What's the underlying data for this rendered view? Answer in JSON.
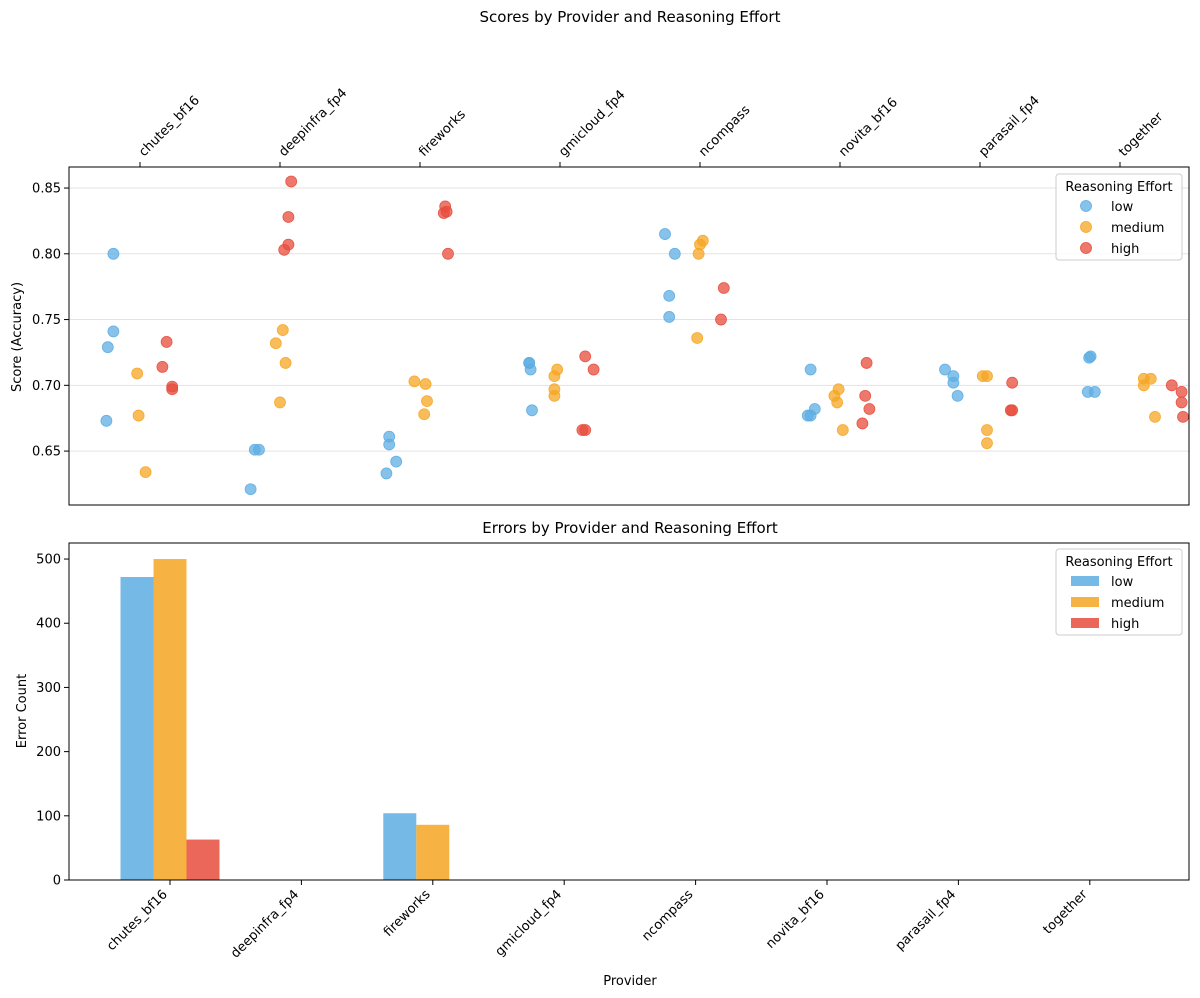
{
  "chart_data": [
    {
      "type": "scatter",
      "title": "Scores by Provider and Reasoning Effort",
      "xlabel": "",
      "ylabel": "Score (Accuracy)",
      "ylim": [
        0.609,
        0.866
      ],
      "yticks": [
        0.65,
        0.7,
        0.75,
        0.8,
        0.85
      ],
      "ytick_labels": [
        "0.65",
        "0.70",
        "0.75",
        "0.80",
        "0.85"
      ],
      "grid": "horizontal",
      "x_axis_position": "top",
      "categories": [
        "chutes_bf16",
        "deepinfra_fp4",
        "fireworks",
        "gmicloud_fp4",
        "ncompass",
        "novita_bf16",
        "parasail_fp4",
        "together"
      ],
      "legend": {
        "title": "Reasoning Effort",
        "placement": "top-right"
      },
      "series": [
        {
          "name": "low",
          "color": "#5DADE2",
          "points": [
            {
              "category": 0,
              "jitter": -0.24,
              "y": 0.673
            },
            {
              "category": 0,
              "jitter": -0.23,
              "y": 0.729
            },
            {
              "category": 0,
              "jitter": -0.19,
              "y": 0.741
            },
            {
              "category": 0,
              "jitter": -0.19,
              "y": 0.8
            },
            {
              "category": 1,
              "jitter": -0.21,
              "y": 0.621
            },
            {
              "category": 1,
              "jitter": -0.18,
              "y": 0.651
            },
            {
              "category": 1,
              "jitter": -0.15,
              "y": 0.651
            },
            {
              "category": 2,
              "jitter": -0.24,
              "y": 0.633
            },
            {
              "category": 2,
              "jitter": -0.22,
              "y": 0.655
            },
            {
              "category": 2,
              "jitter": -0.22,
              "y": 0.661
            },
            {
              "category": 2,
              "jitter": -0.17,
              "y": 0.642
            },
            {
              "category": 3,
              "jitter": -0.22,
              "y": 0.717
            },
            {
              "category": 3,
              "jitter": -0.21,
              "y": 0.712
            },
            {
              "category": 3,
              "jitter": -0.2,
              "y": 0.681
            },
            {
              "category": 3,
              "jitter": -0.22,
              "y": 0.717
            },
            {
              "category": 4,
              "jitter": -0.25,
              "y": 0.815
            },
            {
              "category": 4,
              "jitter": -0.22,
              "y": 0.768
            },
            {
              "category": 4,
              "jitter": -0.22,
              "y": 0.752
            },
            {
              "category": 4,
              "jitter": -0.18,
              "y": 0.8
            },
            {
              "category": 5,
              "jitter": -0.23,
              "y": 0.677
            },
            {
              "category": 5,
              "jitter": -0.21,
              "y": 0.677
            },
            {
              "category": 5,
              "jitter": -0.21,
              "y": 0.712
            },
            {
              "category": 5,
              "jitter": -0.18,
              "y": 0.682
            },
            {
              "category": 6,
              "jitter": -0.25,
              "y": 0.712
            },
            {
              "category": 6,
              "jitter": -0.19,
              "y": 0.707
            },
            {
              "category": 6,
              "jitter": -0.19,
              "y": 0.702
            },
            {
              "category": 6,
              "jitter": -0.16,
              "y": 0.692
            },
            {
              "category": 7,
              "jitter": -0.23,
              "y": 0.695
            },
            {
              "category": 7,
              "jitter": -0.22,
              "y": 0.721
            },
            {
              "category": 7,
              "jitter": -0.21,
              "y": 0.722
            },
            {
              "category": 7,
              "jitter": -0.18,
              "y": 0.695
            }
          ]
        },
        {
          "name": "medium",
          "color": "#F5A623",
          "points": [
            {
              "category": 0,
              "jitter": -0.02,
              "y": 0.709
            },
            {
              "category": 0,
              "jitter": -0.01,
              "y": 0.677
            },
            {
              "category": 0,
              "jitter": 0.04,
              "y": 0.634
            },
            {
              "category": 1,
              "jitter": -0.03,
              "y": 0.732
            },
            {
              "category": 1,
              "jitter": 0.0,
              "y": 0.687
            },
            {
              "category": 1,
              "jitter": 0.02,
              "y": 0.742
            },
            {
              "category": 1,
              "jitter": 0.04,
              "y": 0.717
            },
            {
              "category": 2,
              "jitter": -0.04,
              "y": 0.703
            },
            {
              "category": 2,
              "jitter": 0.03,
              "y": 0.678
            },
            {
              "category": 2,
              "jitter": 0.04,
              "y": 0.701
            },
            {
              "category": 2,
              "jitter": 0.05,
              "y": 0.688
            },
            {
              "category": 3,
              "jitter": -0.04,
              "y": 0.697
            },
            {
              "category": 3,
              "jitter": -0.04,
              "y": 0.707
            },
            {
              "category": 3,
              "jitter": -0.04,
              "y": 0.692
            },
            {
              "category": 3,
              "jitter": -0.02,
              "y": 0.712
            },
            {
              "category": 4,
              "jitter": -0.02,
              "y": 0.736
            },
            {
              "category": 4,
              "jitter": -0.01,
              "y": 0.8
            },
            {
              "category": 4,
              "jitter": 0.0,
              "y": 0.807
            },
            {
              "category": 4,
              "jitter": 0.02,
              "y": 0.81
            },
            {
              "category": 5,
              "jitter": -0.04,
              "y": 0.692
            },
            {
              "category": 5,
              "jitter": -0.02,
              "y": 0.687
            },
            {
              "category": 5,
              "jitter": -0.01,
              "y": 0.697
            },
            {
              "category": 5,
              "jitter": 0.02,
              "y": 0.666
            },
            {
              "category": 6,
              "jitter": 0.02,
              "y": 0.707
            },
            {
              "category": 6,
              "jitter": 0.05,
              "y": 0.707
            },
            {
              "category": 6,
              "jitter": 0.05,
              "y": 0.666
            },
            {
              "category": 6,
              "jitter": 0.05,
              "y": 0.656
            },
            {
              "category": 7,
              "jitter": 0.17,
              "y": 0.705
            },
            {
              "category": 7,
              "jitter": 0.17,
              "y": 0.7
            },
            {
              "category": 7,
              "jitter": 0.22,
              "y": 0.705
            },
            {
              "category": 7,
              "jitter": 0.25,
              "y": 0.676
            }
          ]
        },
        {
          "name": "high",
          "color": "#E74C3C",
          "points": [
            {
              "category": 0,
              "jitter": 0.16,
              "y": 0.714
            },
            {
              "category": 0,
              "jitter": 0.19,
              "y": 0.733
            },
            {
              "category": 0,
              "jitter": 0.23,
              "y": 0.699
            },
            {
              "category": 0,
              "jitter": 0.23,
              "y": 0.697
            },
            {
              "category": 1,
              "jitter": 0.03,
              "y": 0.803
            },
            {
              "category": 1,
              "jitter": 0.06,
              "y": 0.807
            },
            {
              "category": 1,
              "jitter": 0.06,
              "y": 0.828
            },
            {
              "category": 1,
              "jitter": 0.08,
              "y": 0.855
            },
            {
              "category": 2,
              "jitter": 0.17,
              "y": 0.831
            },
            {
              "category": 2,
              "jitter": 0.18,
              "y": 0.836
            },
            {
              "category": 2,
              "jitter": 0.19,
              "y": 0.832
            },
            {
              "category": 2,
              "jitter": 0.2,
              "y": 0.8
            },
            {
              "category": 3,
              "jitter": 0.16,
              "y": 0.666
            },
            {
              "category": 3,
              "jitter": 0.18,
              "y": 0.722
            },
            {
              "category": 3,
              "jitter": 0.18,
              "y": 0.666
            },
            {
              "category": 3,
              "jitter": 0.24,
              "y": 0.712
            },
            {
              "category": 4,
              "jitter": 0.15,
              "y": 0.75
            },
            {
              "category": 4,
              "jitter": 0.17,
              "y": 0.774
            },
            {
              "category": 5,
              "jitter": 0.16,
              "y": 0.671
            },
            {
              "category": 5,
              "jitter": 0.18,
              "y": 0.692
            },
            {
              "category": 5,
              "jitter": 0.19,
              "y": 0.717
            },
            {
              "category": 5,
              "jitter": 0.21,
              "y": 0.682
            },
            {
              "category": 6,
              "jitter": 0.22,
              "y": 0.681
            },
            {
              "category": 6,
              "jitter": 0.23,
              "y": 0.702
            },
            {
              "category": 6,
              "jitter": 0.23,
              "y": 0.681
            },
            {
              "category": 7,
              "jitter": 0.37,
              "y": 0.7
            },
            {
              "category": 7,
              "jitter": 0.44,
              "y": 0.695
            },
            {
              "category": 7,
              "jitter": 0.44,
              "y": 0.687
            },
            {
              "category": 7,
              "jitter": 0.45,
              "y": 0.676
            }
          ]
        }
      ]
    },
    {
      "type": "bar",
      "title": "Errors by Provider and Reasoning Effort",
      "xlabel": "Provider",
      "ylabel": "Error Count",
      "ylim": [
        0,
        525
      ],
      "yticks": [
        0,
        100,
        200,
        300,
        400,
        500
      ],
      "ytick_labels": [
        "0",
        "100",
        "200",
        "300",
        "400",
        "500"
      ],
      "categories": [
        "chutes_bf16",
        "deepinfra_fp4",
        "fireworks",
        "gmicloud_fp4",
        "ncompass",
        "novita_bf16",
        "parasail_fp4",
        "together"
      ],
      "legend": {
        "title": "Reasoning Effort",
        "placement": "top-right"
      },
      "series": [
        {
          "name": "low",
          "color": "#5DADE2",
          "values": [
            472,
            0,
            104,
            0,
            0,
            0,
            0,
            0
          ]
        },
        {
          "name": "medium",
          "color": "#F5A623",
          "values": [
            500,
            0,
            86,
            0,
            0,
            0,
            0,
            0
          ]
        },
        {
          "name": "high",
          "color": "#E74C3C",
          "values": [
            63,
            0,
            0,
            0,
            0,
            0,
            0,
            0
          ]
        }
      ]
    }
  ]
}
